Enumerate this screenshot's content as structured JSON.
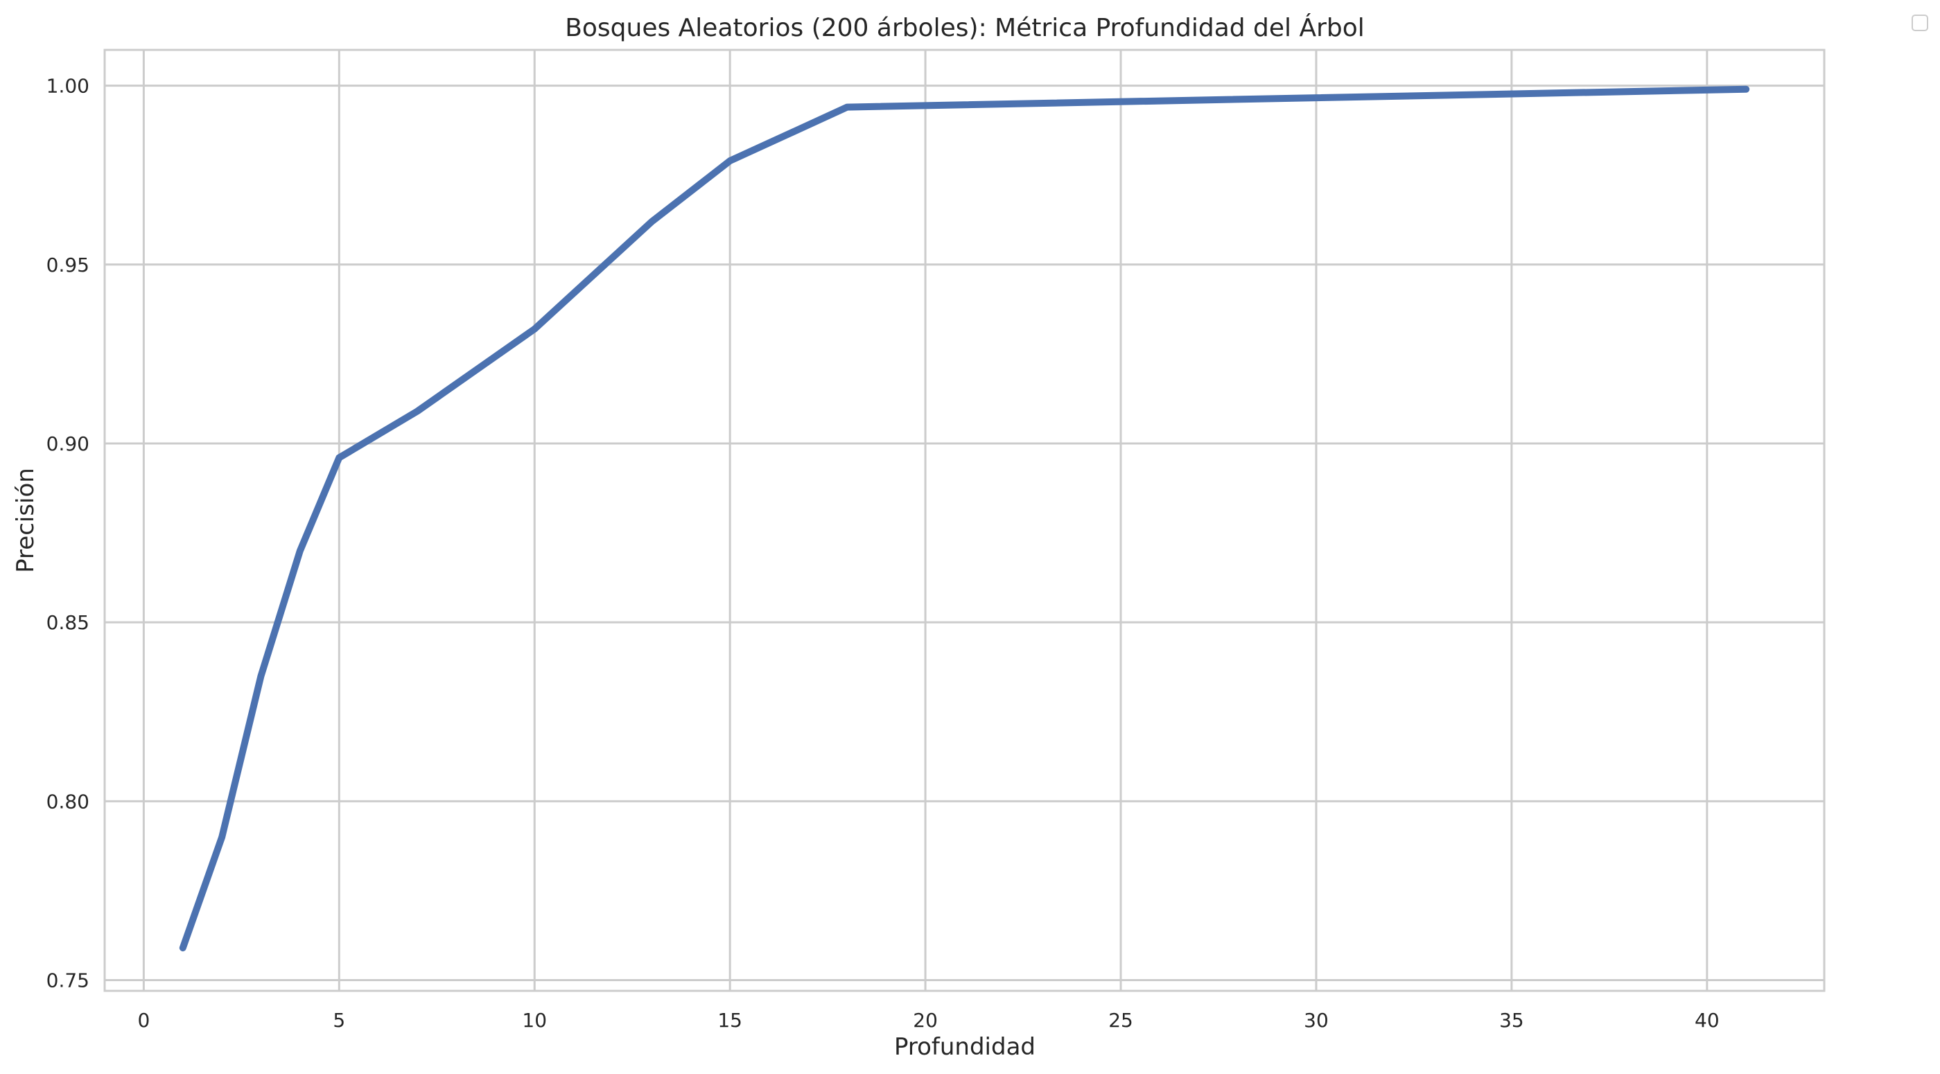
{
  "chart_data": {
    "type": "line",
    "title": "Bosques Aleatorios (200 árboles): Métrica Profundidad del Árbol",
    "xlabel": "Profundidad",
    "ylabel": "Precisión",
    "xlim": [
      -1,
      43
    ],
    "ylim": [
      0.747,
      1.01
    ],
    "xticks": [
      0,
      5,
      10,
      15,
      20,
      25,
      30,
      35,
      40
    ],
    "xtick_labels": [
      "0",
      "5",
      "10",
      "15",
      "20",
      "25",
      "30",
      "35",
      "40"
    ],
    "yticks": [
      0.75,
      0.8,
      0.85,
      0.9,
      0.95,
      1.0
    ],
    "ytick_labels": [
      "0.75",
      "0.80",
      "0.85",
      "0.90",
      "0.95",
      "1.00"
    ],
    "grid": true,
    "legend": "top-right, empty",
    "series": [
      {
        "color": "#4c72b0",
        "x": [
          1,
          2,
          3,
          4,
          5,
          7,
          10,
          13,
          15,
          18,
          41
        ],
        "y": [
          0.759,
          0.79,
          0.835,
          0.87,
          0.896,
          0.909,
          0.932,
          0.962,
          0.979,
          0.994,
          0.999
        ]
      }
    ]
  }
}
